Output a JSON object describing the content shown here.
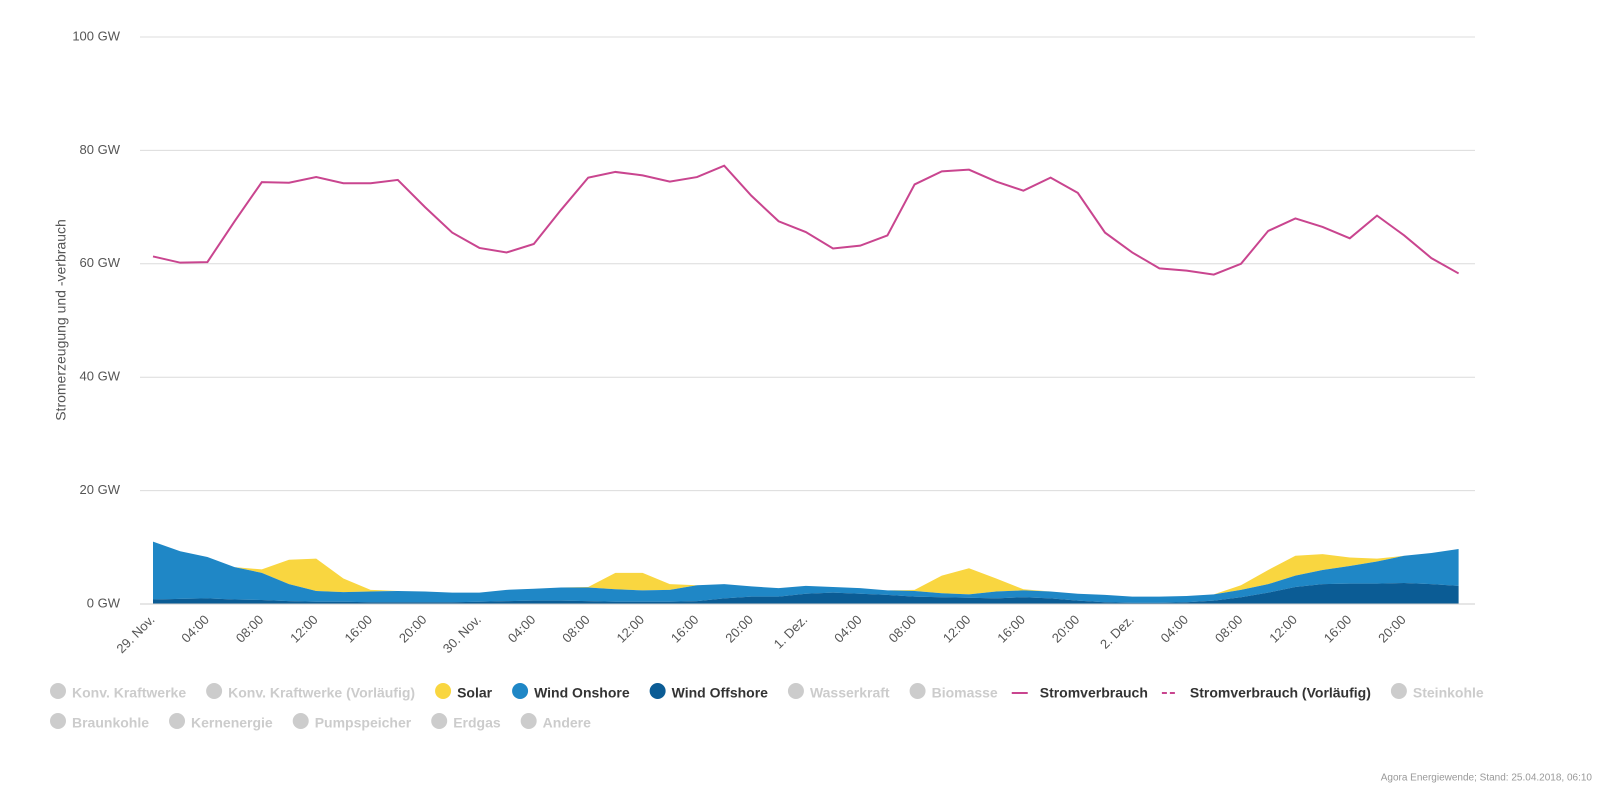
{
  "chart_data": {
    "type": "stacked-area-line",
    "y_label": "Stromerzeugung und -verbrauch",
    "credit": "Agora Energiewende; Stand: 25.04.2018, 06:10",
    "categories": [
      "29. Nov.",
      null,
      "04:00",
      null,
      "08:00",
      null,
      "12:00",
      null,
      "16:00",
      null,
      "20:00",
      null,
      "30. Nov.",
      null,
      "04:00",
      null,
      "08:00",
      null,
      "12:00",
      null,
      "16:00",
      null,
      "20:00",
      null,
      "1. Dez.",
      null,
      "04:00",
      null,
      "08:00",
      null,
      "12:00",
      null,
      "16:00",
      null,
      "20:00",
      null,
      "2. Dez.",
      null,
      "04:00",
      null,
      "08:00",
      null,
      "12:00",
      null,
      "16:00",
      null,
      "20:00",
      null,
      null
    ],
    "ylim": [
      0,
      100
    ],
    "yticks": [
      {
        "value": 0,
        "label": "0 GW"
      },
      {
        "value": 20,
        "label": "20 GW"
      },
      {
        "value": 40,
        "label": "40 GW"
      },
      {
        "value": 60,
        "label": "60 GW"
      },
      {
        "value": 80,
        "label": "80 GW"
      },
      {
        "value": 100,
        "label": "100 GW"
      }
    ],
    "grid": true,
    "series": [
      {
        "name": "Konv. Kraftwerke",
        "visible": false
      },
      {
        "name": "Konv. Kraftwerke (Vorläufig)",
        "visible": false
      },
      {
        "name": "Solar",
        "visible": true,
        "kind": "area",
        "stack": 2,
        "color": "#f9d640",
        "values": [
          0,
          0,
          0,
          0,
          0.6,
          4.3,
          5.7,
          2.4,
          0.3,
          0,
          0,
          0,
          0,
          0,
          0,
          0,
          0.1,
          2.9,
          3.1,
          1.0,
          0,
          0,
          0,
          0,
          0,
          0,
          0,
          0,
          0.2,
          3.1,
          4.6,
          2.3,
          0.2,
          0,
          0,
          0,
          0,
          0,
          0,
          0,
          0.8,
          2.5,
          3.5,
          2.8,
          1.5,
          0.5,
          0,
          0,
          0
        ]
      },
      {
        "name": "Wind Onshore",
        "visible": true,
        "kind": "area",
        "stack": 1,
        "color": "#1f87c6",
        "values": [
          10.2,
          8.4,
          7.3,
          5.7,
          4.8,
          3.0,
          1.9,
          1.7,
          1.9,
          2.0,
          1.9,
          1.7,
          1.6,
          2.0,
          2.1,
          2.3,
          2.4,
          2.2,
          2.0,
          2.1,
          2.8,
          2.5,
          1.8,
          1.5,
          1.4,
          1.0,
          1.0,
          0.8,
          1.0,
          0.7,
          0.6,
          1.2,
          1.2,
          1.2,
          1.2,
          1.3,
          1.1,
          1.1,
          1.1,
          1.1,
          1.3,
          1.5,
          2.0,
          2.5,
          3.1,
          3.9,
          4.8,
          5.5,
          6.5
        ]
      },
      {
        "name": "Wind Offshore",
        "visible": true,
        "kind": "area",
        "stack": 0,
        "color": "#0b5c95",
        "values": [
          0.8,
          0.9,
          1.0,
          0.8,
          0.7,
          0.5,
          0.4,
          0.4,
          0.3,
          0.3,
          0.3,
          0.3,
          0.4,
          0.5,
          0.6,
          0.6,
          0.5,
          0.4,
          0.4,
          0.4,
          0.5,
          1.0,
          1.3,
          1.3,
          1.8,
          2.0,
          1.8,
          1.6,
          1.3,
          1.2,
          1.1,
          1.0,
          1.2,
          1.0,
          0.6,
          0.3,
          0.2,
          0.2,
          0.3,
          0.6,
          1.2,
          2.0,
          3.0,
          3.5,
          3.6,
          3.6,
          3.7,
          3.5,
          3.2
        ]
      },
      {
        "name": "Wasserkraft",
        "visible": false
      },
      {
        "name": "Biomasse",
        "visible": false
      },
      {
        "name": "Stromverbrauch",
        "visible": true,
        "kind": "line",
        "color": "#c9458f",
        "values": [
          61.3,
          60.2,
          60.3,
          67.5,
          74.4,
          74.3,
          75.3,
          74.2,
          74.2,
          74.8,
          70.0,
          65.5,
          62.8,
          62.0,
          63.5,
          69.5,
          75.2,
          76.2,
          75.6,
          74.5,
          75.3,
          77.3,
          72.0,
          67.5,
          65.6,
          62.7,
          63.2,
          65.0,
          74.0,
          76.3,
          76.6,
          74.5,
          72.9,
          75.2,
          72.5,
          65.5,
          62.0,
          59.2,
          58.8,
          58.1,
          60.0,
          65.8,
          68.0,
          66.5,
          64.5,
          68.5,
          65.0,
          61.0,
          58.3
        ]
      },
      {
        "name": "Stromverbrauch (Vorläufig)",
        "visible": true,
        "kind": "dashed-line",
        "color": "#c9458f"
      },
      {
        "name": "Steinkohle",
        "visible": false
      },
      {
        "name": "Braunkohle",
        "visible": false
      },
      {
        "name": "Kernenergie",
        "visible": false
      },
      {
        "name": "Pumpspeicher",
        "visible": false
      },
      {
        "name": "Erdgas",
        "visible": false
      },
      {
        "name": "Andere",
        "visible": false
      }
    ]
  }
}
